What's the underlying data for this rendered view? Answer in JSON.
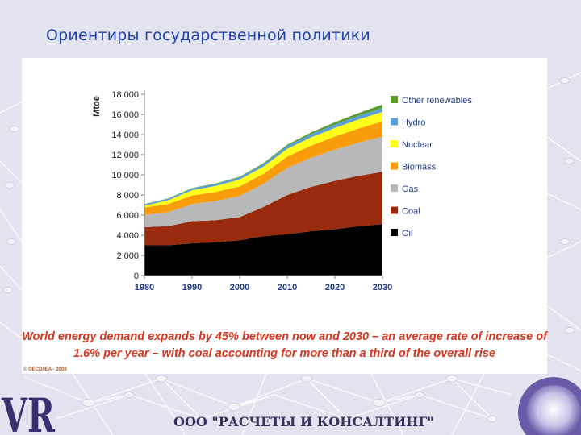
{
  "slide": {
    "title": "Ориентиры государственной политики",
    "company": "ООО \"РАСЧЕТЫ И КОНСАЛТИНГ\"",
    "logo_text": "VR"
  },
  "chart_data": {
    "type": "area",
    "stacked": true,
    "ylabel": "Mtoe",
    "xlabel": "",
    "ylim": [
      0,
      18000
    ],
    "y_ticks": [
      0,
      2000,
      4000,
      6000,
      8000,
      10000,
      12000,
      14000,
      16000,
      18000
    ],
    "y_tick_labels": [
      "0",
      "2 000",
      "4 000",
      "6 000",
      "8 000",
      "10 000",
      "12 000",
      "14 000",
      "16 000",
      "18 000"
    ],
    "x_ticks": [
      1980,
      1990,
      2000,
      2010,
      2020,
      2030
    ],
    "x": [
      1980,
      1985,
      1990,
      1995,
      2000,
      2005,
      2010,
      2015,
      2020,
      2025,
      2030
    ],
    "grid": false,
    "legend_position": "right",
    "series": [
      {
        "name": "Oil",
        "color": "#000000",
        "values": [
          3000,
          3000,
          3200,
          3300,
          3500,
          3900,
          4100,
          4400,
          4600,
          4900,
          5100
        ]
      },
      {
        "name": "Coal",
        "color": "#992a0c",
        "values": [
          1800,
          1900,
          2200,
          2200,
          2300,
          2900,
          3900,
          4400,
          4800,
          5000,
          5200
        ]
      },
      {
        "name": "Gas",
        "color": "#b8b8b8",
        "values": [
          1200,
          1400,
          1700,
          1900,
          2100,
          2300,
          2700,
          2900,
          3100,
          3300,
          3500
        ]
      },
      {
        "name": "Biomass",
        "color": "#f99c0b",
        "values": [
          750,
          800,
          850,
          900,
          950,
          1000,
          1100,
          1200,
          1300,
          1400,
          1500
        ]
      },
      {
        "name": "Nuclear",
        "color": "#ffff1a",
        "values": [
          190,
          380,
          520,
          600,
          680,
          720,
          780,
          820,
          860,
          900,
          950
        ]
      },
      {
        "name": "Hydro",
        "color": "#5a9fd8",
        "values": [
          130,
          150,
          180,
          200,
          220,
          250,
          280,
          310,
          340,
          370,
          400
        ]
      },
      {
        "name": "Other renewables",
        "color": "#5c9c2e",
        "values": [
          20,
          30,
          40,
          50,
          60,
          90,
          130,
          170,
          220,
          270,
          330
        ]
      }
    ],
    "caption": "World energy demand expands by 45% between now and 2030 – an average rate of increase of 1.6% per year – with coal accounting for more than a third of the overall rise",
    "copyright": "© OECD/IEA - 2008"
  }
}
